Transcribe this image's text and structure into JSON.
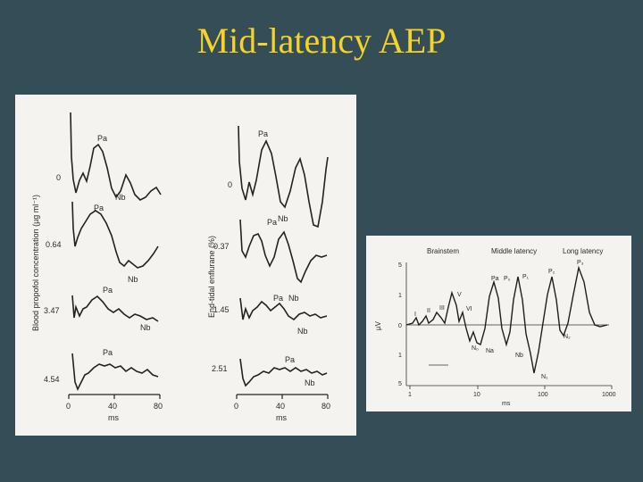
{
  "slide": {
    "title": "Mid-latency AEP"
  },
  "figure_left": {
    "propofol": {
      "ylabel": "Blood propofol concentration (µg ml⁻¹)",
      "traces": [
        {
          "value": "0",
          "peak1": "Pa",
          "peak2": "Nb"
        },
        {
          "value": "0.64",
          "peak1": "Pa",
          "peak2": "Nb"
        },
        {
          "value": "3.47",
          "peak1": "Pa",
          "peak2": "Nb"
        },
        {
          "value": "4.54",
          "peak1": "Pa",
          "peak2": ""
        }
      ],
      "xticks": [
        "0",
        "40",
        "80"
      ],
      "xlabel": "ms"
    },
    "enflurane": {
      "ylabel": "End-tidal enflurane (%)",
      "traces": [
        {
          "value": "0",
          "peak1": "Pa",
          "peak2": "Nb"
        },
        {
          "value": "0.37",
          "peak1": "Pa",
          "peak2": ""
        },
        {
          "value": "1.45",
          "peak1": "Pa",
          "peak2": "Nb"
        },
        {
          "value": "2.51",
          "peak1": "Pa",
          "peak2": "Nb"
        }
      ],
      "xticks": [
        "0",
        "40",
        "80"
      ],
      "xlabel": "ms"
    }
  },
  "figure_right": {
    "sections": {
      "brainstem": "Brainstem",
      "middle": "Middle latency",
      "long": "Long latency"
    },
    "ylabel": "µV",
    "yticks": [
      "5",
      "1",
      "0",
      "1",
      "5"
    ],
    "xticks": [
      "1",
      "10",
      "100",
      "1000"
    ],
    "xlabel": "ms",
    "components": [
      "I",
      "II",
      "III",
      "V",
      "VI",
      "P₀",
      "Pa",
      "P₁",
      "P₂",
      "P₃",
      "N₀",
      "Na",
      "Nb",
      "N₁",
      "N₂"
    ]
  }
}
